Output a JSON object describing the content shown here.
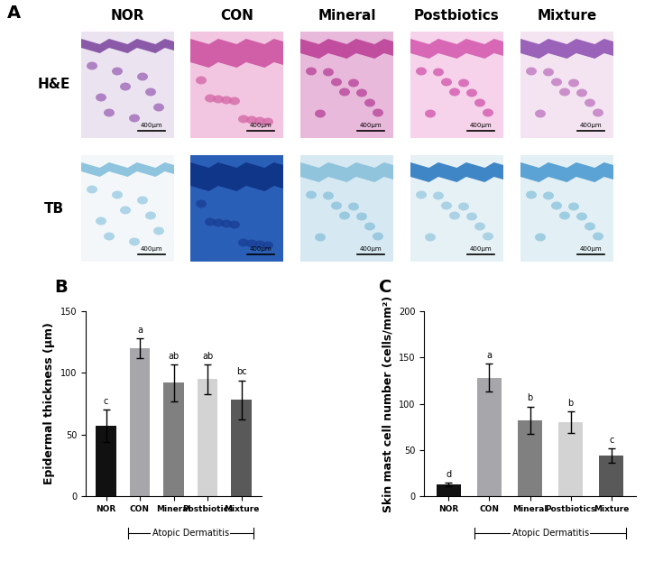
{
  "panel_a": {
    "panel_label": "A",
    "columns": [
      "NOR",
      "CON",
      "Mineral",
      "Postbiotics",
      "Mixture"
    ],
    "rows": [
      "H&E",
      "TB"
    ],
    "scale_bar": "400μm"
  },
  "chart_data": [
    {
      "type": "bar",
      "panel_label": "B",
      "categories": [
        "NOR",
        "CON",
        "Mineral",
        "Postbiotics",
        "Mixture"
      ],
      "values": [
        57,
        120,
        92,
        95,
        78
      ],
      "errors": [
        13,
        8,
        15,
        12,
        16
      ],
      "annotations": [
        "c",
        "a",
        "ab",
        "ab",
        "bc"
      ],
      "colors": [
        "#111111",
        "#a6a6ab",
        "#808080",
        "#d3d3d3",
        "#595959"
      ],
      "y_label": "Epidermal thickness (μm)",
      "ylim": [
        0,
        150
      ],
      "yticks": [
        0,
        50,
        100,
        150
      ],
      "group_label": "Atopic Dermatitis",
      "group_categories": [
        "CON",
        "Mineral",
        "Postbiotics",
        "Mixture"
      ]
    },
    {
      "type": "bar",
      "panel_label": "C",
      "categories": [
        "NOR",
        "CON",
        "Mineral",
        "Postbiotics",
        "Mixture"
      ],
      "values": [
        13,
        128,
        82,
        80,
        44
      ],
      "errors": [
        2,
        15,
        15,
        12,
        8
      ],
      "annotations": [
        "d",
        "a",
        "b",
        "b",
        "c"
      ],
      "colors": [
        "#111111",
        "#a6a6ab",
        "#808080",
        "#d3d3d3",
        "#595959"
      ],
      "y_label": "Skin mast cell number (cells/mm²)",
      "ylim": [
        0,
        200
      ],
      "yticks": [
        0,
        50,
        100,
        150,
        200
      ],
      "group_label": "Atopic Dermatitis",
      "group_categories": [
        "CON",
        "Mineral",
        "Postbiotics",
        "Mixture"
      ]
    }
  ]
}
